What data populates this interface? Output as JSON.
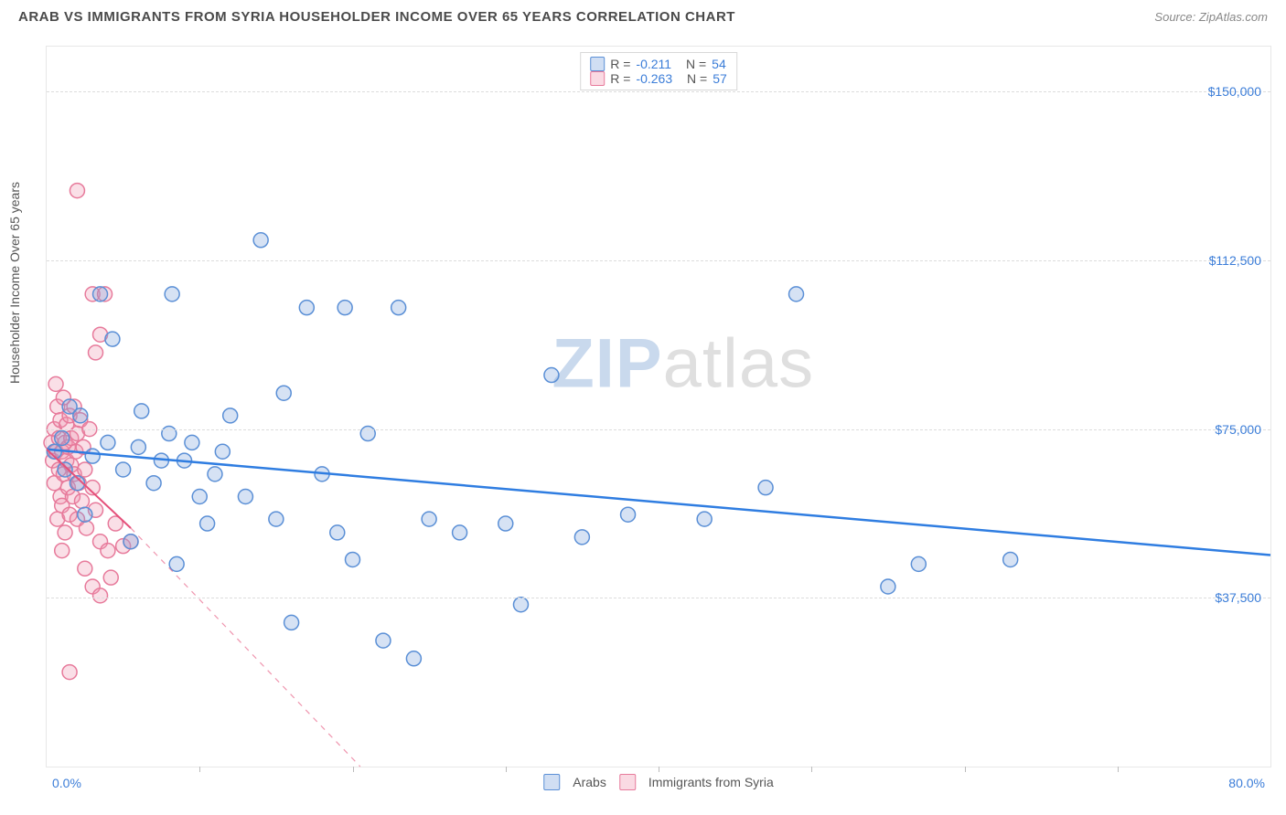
{
  "header": {
    "title": "ARAB VS IMMIGRANTS FROM SYRIA HOUSEHOLDER INCOME OVER 65 YEARS CORRELATION CHART",
    "source_label": "Source:",
    "source_name": "ZipAtlas.com"
  },
  "ylabel": "Householder Income Over 65 years",
  "watermark": {
    "part1": "ZIP",
    "part2": "atlas"
  },
  "chart": {
    "type": "scatter",
    "xlim": [
      0,
      80
    ],
    "ylim": [
      0,
      160000
    ],
    "x_tick_step": 10,
    "x_tick_start": 10,
    "x_label_min": "0.0%",
    "x_label_max": "80.0%",
    "y_gridlines": [
      37500,
      75000,
      112500,
      150000
    ],
    "y_labels": [
      "$37,500",
      "$75,000",
      "$112,500",
      "$150,000"
    ],
    "background_color": "#ffffff",
    "grid_color": "#dcdcdc",
    "axis_color": "#bbbbbb",
    "label_color": "#3b7dd8",
    "label_fontsize": 14
  },
  "stats_legend": {
    "rows": [
      {
        "swatch": "blue",
        "r_label": "R =",
        "r": "-0.211",
        "n_label": "N =",
        "n": "54"
      },
      {
        "swatch": "pink",
        "r_label": "R =",
        "r": "-0.263",
        "n_label": "N =",
        "n": "57"
      }
    ]
  },
  "bottom_legend": {
    "items": [
      {
        "swatch": "blue",
        "label": "Arabs"
      },
      {
        "swatch": "pink",
        "label": "Immigrants from Syria"
      }
    ]
  },
  "series": {
    "arabs": {
      "color_fill": "rgba(120,160,220,0.30)",
      "color_stroke": "#5a8fd6",
      "marker_radius": 8,
      "line_color": "#2f7de1",
      "line_width": 2.5,
      "trend": {
        "x1": 0,
        "y1": 70500,
        "x2": 80,
        "y2": 47000
      },
      "points": [
        [
          0.5,
          70000
        ],
        [
          1.0,
          73000
        ],
        [
          1.2,
          66000
        ],
        [
          1.5,
          80000
        ],
        [
          2.0,
          63000
        ],
        [
          2.2,
          78000
        ],
        [
          2.5,
          56000
        ],
        [
          3.0,
          69000
        ],
        [
          3.5,
          105000
        ],
        [
          4.0,
          72000
        ],
        [
          4.3,
          95000
        ],
        [
          5.0,
          66000
        ],
        [
          5.5,
          50000
        ],
        [
          6.0,
          71000
        ],
        [
          6.2,
          79000
        ],
        [
          7.0,
          63000
        ],
        [
          7.5,
          68000
        ],
        [
          8.0,
          74000
        ],
        [
          8.2,
          105000
        ],
        [
          8.5,
          45000
        ],
        [
          9.0,
          68000
        ],
        [
          9.5,
          72000
        ],
        [
          10.0,
          60000
        ],
        [
          10.5,
          54000
        ],
        [
          11.0,
          65000
        ],
        [
          11.5,
          70000
        ],
        [
          12.0,
          78000
        ],
        [
          13.0,
          60000
        ],
        [
          14.0,
          117000
        ],
        [
          15.0,
          55000
        ],
        [
          15.5,
          83000
        ],
        [
          16.0,
          32000
        ],
        [
          17.0,
          102000
        ],
        [
          18.0,
          65000
        ],
        [
          19.0,
          52000
        ],
        [
          19.5,
          102000
        ],
        [
          20.0,
          46000
        ],
        [
          21.0,
          74000
        ],
        [
          22.0,
          28000
        ],
        [
          23.0,
          102000
        ],
        [
          24.0,
          24000
        ],
        [
          25.0,
          55000
        ],
        [
          27.0,
          52000
        ],
        [
          30.0,
          54000
        ],
        [
          31.0,
          36000
        ],
        [
          33.0,
          87000
        ],
        [
          35.0,
          51000
        ],
        [
          38.0,
          56000
        ],
        [
          43.0,
          55000
        ],
        [
          47.0,
          62000
        ],
        [
          49.0,
          105000
        ],
        [
          55.0,
          40000
        ],
        [
          57.0,
          45000
        ],
        [
          63.0,
          46000
        ]
      ]
    },
    "syria": {
      "color_fill": "rgba(240,150,175,0.30)",
      "color_stroke": "#e77a9b",
      "marker_radius": 8,
      "line_color": "#e5507a",
      "line_width": 2,
      "trend_solid": {
        "x1": 0,
        "y1": 70500,
        "x2": 5.5,
        "y2": 53000
      },
      "trend_dash": {
        "x1": 5.5,
        "y1": 53000,
        "x2": 20.5,
        "y2": 0
      },
      "points": [
        [
          0.3,
          72000
        ],
        [
          0.4,
          68000
        ],
        [
          0.5,
          75000
        ],
        [
          0.5,
          63000
        ],
        [
          0.6,
          70000
        ],
        [
          0.7,
          55000
        ],
        [
          0.7,
          80000
        ],
        [
          0.8,
          66000
        ],
        [
          0.8,
          73000
        ],
        [
          0.9,
          60000
        ],
        [
          0.9,
          77000
        ],
        [
          1.0,
          70000
        ],
        [
          1.0,
          58000
        ],
        [
          1.1,
          82000
        ],
        [
          1.1,
          65000
        ],
        [
          1.2,
          72000
        ],
        [
          1.2,
          52000
        ],
        [
          1.3,
          68000
        ],
        [
          1.3,
          76000
        ],
        [
          1.4,
          62000
        ],
        [
          1.4,
          71000
        ],
        [
          1.5,
          56000
        ],
        [
          1.5,
          78000
        ],
        [
          1.6,
          67000
        ],
        [
          1.6,
          73000
        ],
        [
          1.7,
          60000
        ],
        [
          1.8,
          80000
        ],
        [
          1.8,
          65000
        ],
        [
          1.9,
          70000
        ],
        [
          2.0,
          55000
        ],
        [
          2.0,
          74000
        ],
        [
          2.1,
          63000
        ],
        [
          2.2,
          77000
        ],
        [
          2.3,
          59000
        ],
        [
          2.4,
          71000
        ],
        [
          2.5,
          66000
        ],
        [
          2.6,
          53000
        ],
        [
          2.8,
          75000
        ],
        [
          3.0,
          62000
        ],
        [
          3.0,
          105000
        ],
        [
          3.2,
          92000
        ],
        [
          3.2,
          57000
        ],
        [
          3.5,
          50000
        ],
        [
          3.5,
          96000
        ],
        [
          3.8,
          105000
        ],
        [
          4.0,
          48000
        ],
        [
          4.2,
          42000
        ],
        [
          4.5,
          54000
        ],
        [
          5.0,
          49000
        ],
        [
          5.5,
          50000
        ],
        [
          2.0,
          128000
        ],
        [
          1.5,
          21000
        ],
        [
          3.0,
          40000
        ],
        [
          3.5,
          38000
        ],
        [
          0.6,
          85000
        ],
        [
          1.0,
          48000
        ],
        [
          2.5,
          44000
        ]
      ]
    }
  }
}
